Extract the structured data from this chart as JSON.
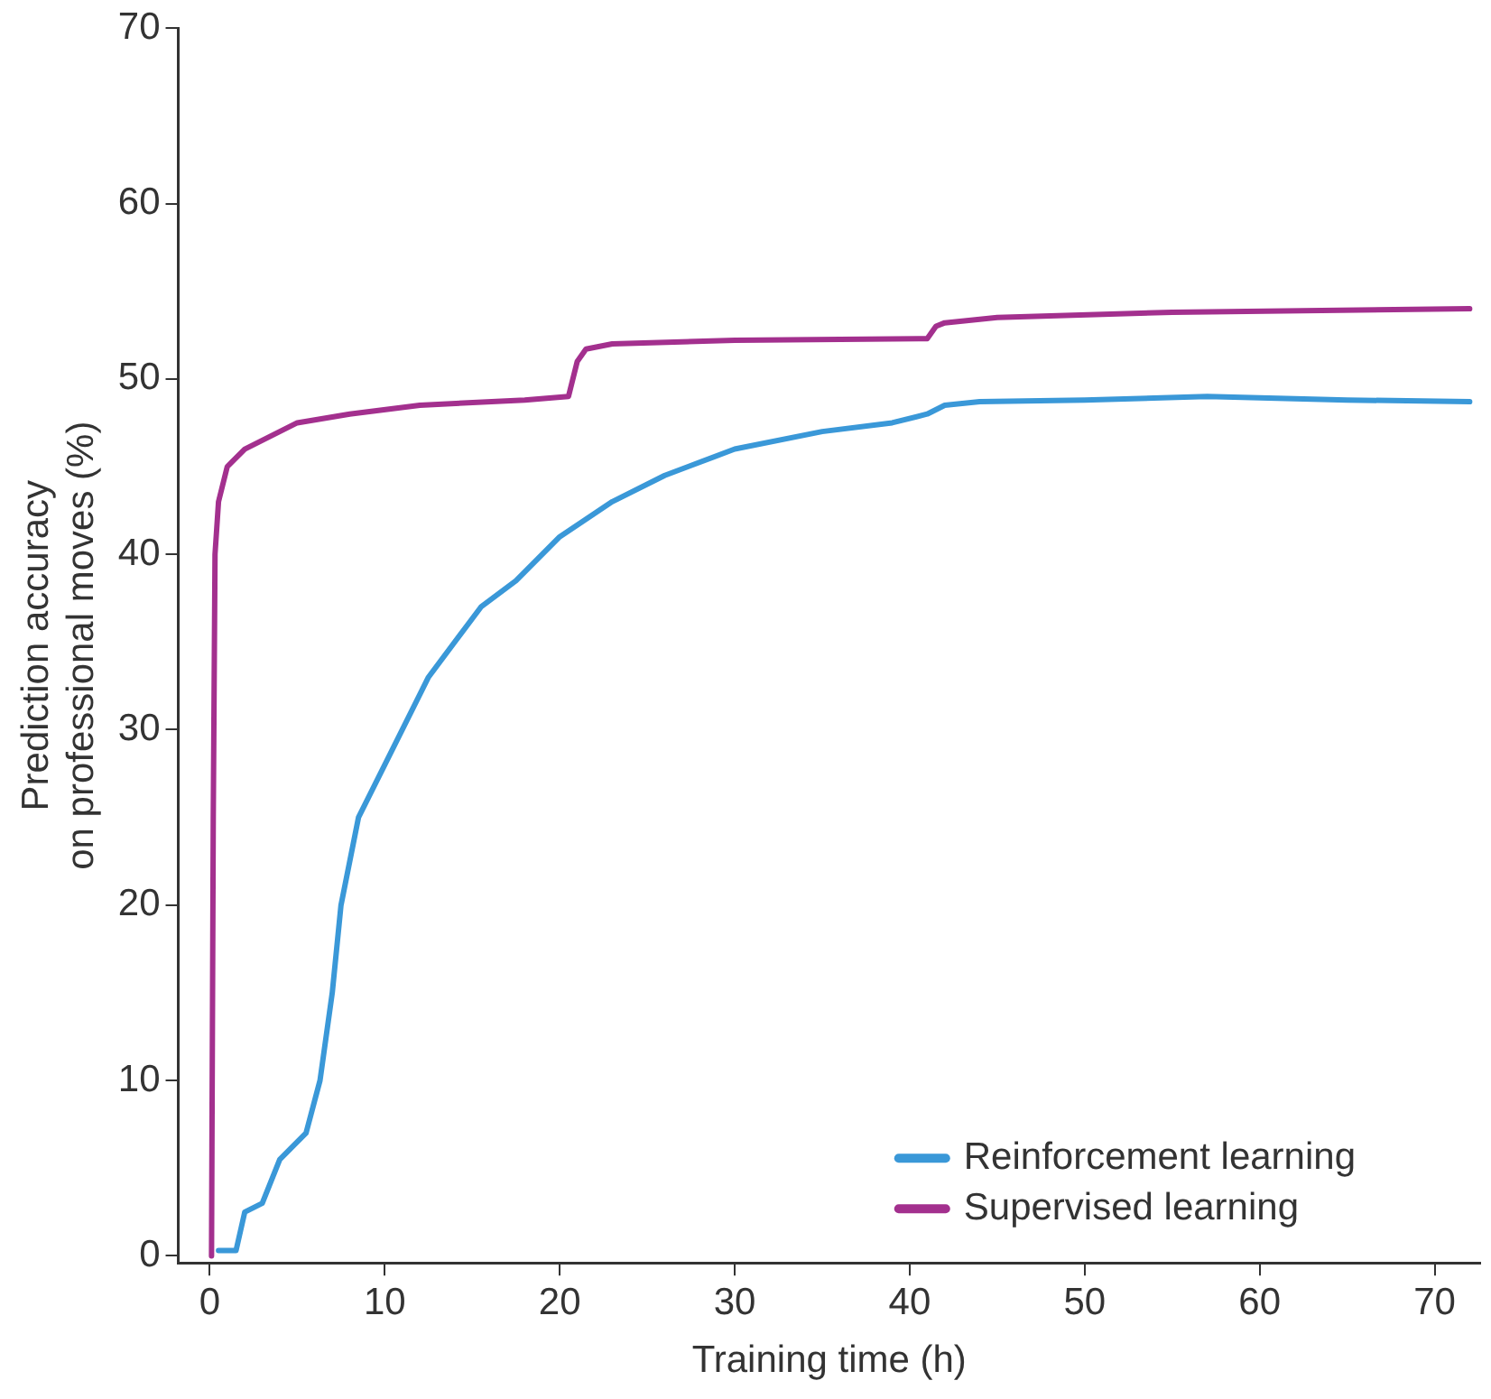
{
  "chart_data": {
    "type": "line",
    "xlabel": "Training time (h)",
    "ylabel": "Prediction accuracy\non professional moves (%)",
    "xlim": [
      -1.8,
      72.6
    ],
    "ylim": [
      -0.4,
      70
    ],
    "xticks": [
      0,
      10,
      20,
      30,
      40,
      50,
      60,
      70
    ],
    "yticks": [
      0,
      10,
      20,
      30,
      40,
      50,
      60,
      70
    ],
    "grid": false,
    "legend": "bottom right",
    "marker": "none",
    "line_style": "solid",
    "series": [
      {
        "name": "Reinforcement learning",
        "color": "#3a98d8",
        "x": [
          0.5,
          1.5,
          2,
          3,
          4,
          5.5,
          6.3,
          7,
          7.5,
          8.5,
          10,
          12.5,
          15.5,
          17.5,
          20,
          23,
          26,
          30,
          35,
          39,
          41,
          42,
          44,
          50,
          57,
          65,
          72
        ],
        "values": [
          0.3,
          0.3,
          2.5,
          3,
          5.5,
          7,
          10,
          15,
          20,
          25,
          28,
          33,
          37,
          38.5,
          41,
          43,
          44.5,
          46,
          47,
          47.5,
          48,
          48.5,
          48.7,
          48.8,
          49,
          48.8,
          48.7
        ]
      },
      {
        "name": "Supervised learning",
        "color": "#a3308e",
        "x": [
          0.1,
          0.2,
          0.3,
          0.5,
          1,
          2,
          5,
          8,
          12,
          18,
          20.5,
          21,
          21.5,
          23,
          30,
          41,
          41.5,
          42,
          45,
          55,
          72
        ],
        "values": [
          0,
          25,
          40,
          43,
          45,
          46,
          47.5,
          48,
          48.5,
          48.8,
          49,
          51,
          51.7,
          52,
          52.2,
          52.3,
          53,
          53.2,
          53.5,
          53.8,
          54
        ]
      }
    ]
  }
}
